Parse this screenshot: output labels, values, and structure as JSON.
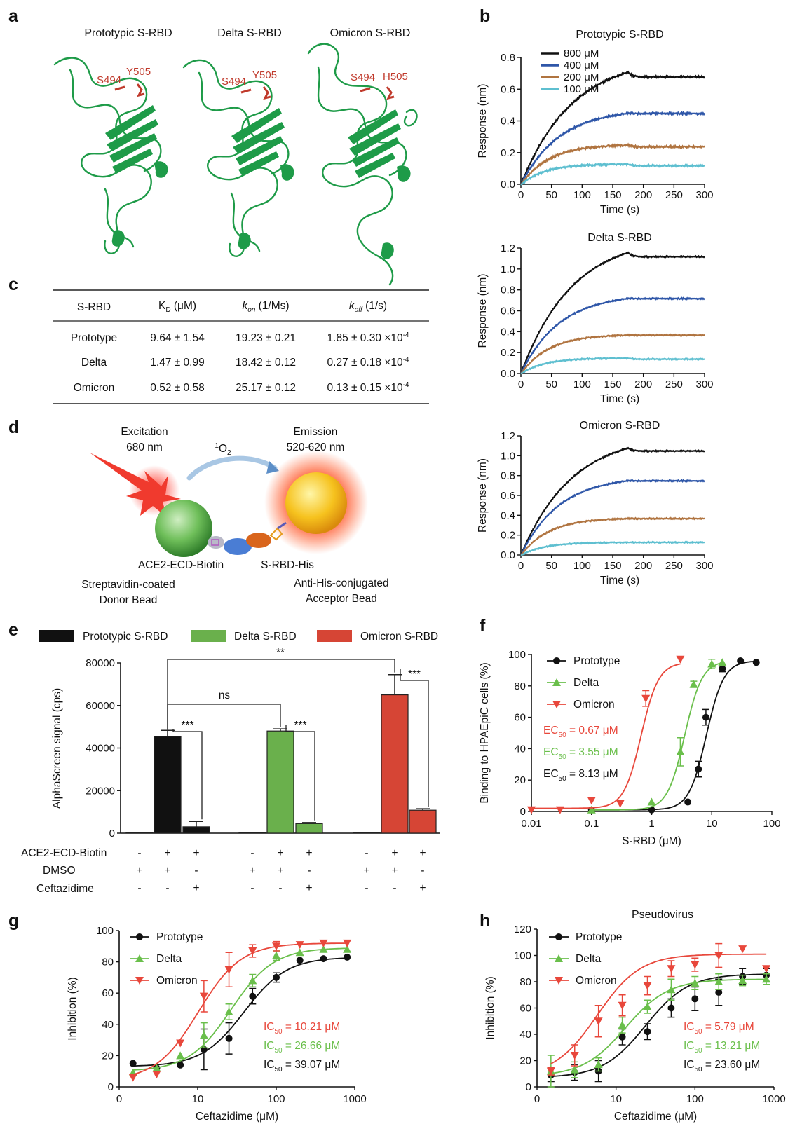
{
  "panel_labels": {
    "a": "a",
    "b": "b",
    "c": "c",
    "d": "d",
    "e": "e",
    "f": "f",
    "g": "g",
    "h": "h"
  },
  "panel_a": {
    "titles": [
      "Prototypic S-RBD",
      "Delta S-RBD",
      "Omicron S-RBD"
    ],
    "residues": [
      [
        "S494",
        "Y505"
      ],
      [
        "S494",
        "Y505"
      ],
      [
        "S494",
        "H505"
      ]
    ],
    "colors": {
      "ribbon": "#1e9b48",
      "residue": "#c0392b"
    }
  },
  "panel_b": {
    "legend": [
      "800 μM",
      "400 μM",
      "200 μM",
      "100 μM"
    ],
    "colors": [
      "#111111",
      "#2e56a8",
      "#b07440",
      "#5ebfd0"
    ],
    "xlabel": "Time (s)",
    "ylabel": "Response (nm)",
    "xticks": [
      "0",
      "50",
      "100",
      "150",
      "200",
      "250",
      "300"
    ],
    "subplots": [
      {
        "title": "Prototypic S-RBD",
        "ylim": [
          0,
          0.8
        ],
        "yticks": [
          "0.0",
          "0.2",
          "0.4",
          "0.6",
          "0.8"
        ]
      },
      {
        "title": "Delta S-RBD",
        "ylim": [
          0,
          1.2
        ],
        "yticks": [
          "0.0",
          "0.2",
          "0.4",
          "0.6",
          "0.8",
          "1.0",
          "1.2"
        ]
      },
      {
        "title": "Omicron S-RBD",
        "ylim": [
          0,
          1.2
        ],
        "yticks": [
          "0.0",
          "0.2",
          "0.4",
          "0.6",
          "0.8",
          "1.0",
          "1.2"
        ]
      }
    ]
  },
  "panel_c": {
    "headers": {
      "c0": "S-RBD",
      "c1": {
        "base": "K",
        "sub": "D",
        "unit": " (μM)"
      },
      "c2": {
        "base": "k",
        "sub": "on",
        "unit": " (1/Ms)"
      },
      "c3": {
        "base": "k",
        "sub": "off",
        "unit": " (1/s)"
      }
    },
    "rows": [
      {
        "name": "Prototype",
        "kd": "9.64 ± 1.54",
        "kon": "19.23 ± 0.21",
        "koff": "1.85 ± 0.30 ×10",
        "exp": "-4"
      },
      {
        "name": "Delta",
        "kd": "1.47 ± 0.99",
        "kon": "18.42 ± 0.12",
        "koff": "0.27 ± 0.18 ×10",
        "exp": "-4"
      },
      {
        "name": "Omicron",
        "kd": "0.52 ± 0.58",
        "kon": "25.17 ± 0.12",
        "koff": "0.13 ± 0.15 ×10",
        "exp": "-4"
      }
    ]
  },
  "panel_d": {
    "excitation": [
      "Excitation",
      "680 nm"
    ],
    "oxygen": {
      "base": "O",
      "sup": "1",
      "sub": "2"
    },
    "emission": [
      "Emission",
      "520-620 nm"
    ],
    "labels": {
      "ace2": "ACE2-ECD-Biotin",
      "srbd": "S-RBD-His"
    },
    "donor": [
      "Streptavidin-coated",
      "Donor Bead"
    ],
    "acceptor": [
      "Anti-His-conjugated",
      "Acceptor Bead"
    ]
  },
  "panel_e": {
    "legend": [
      "Prototypic S-RBD",
      "Delta S-RBD",
      "Omicron S-RBD"
    ],
    "colors": [
      "#111111",
      "#6ab04c",
      "#d64535"
    ],
    "ylabel": "AlphaScreen signal (cps)",
    "yticks": [
      "0",
      "20000",
      "40000",
      "60000",
      "80000"
    ],
    "row_labels": [
      "ACE2-ECD-Biotin",
      "DMSO",
      "Ceftazidime"
    ],
    "conditions": [
      [
        "-",
        "+",
        "+"
      ],
      [
        "+",
        "+",
        "-"
      ],
      [
        "-",
        "-",
        "+"
      ]
    ],
    "sig": {
      "top": "**",
      "ns": "ns",
      "pair": "***"
    }
  },
  "panel_f": {
    "xlabel": "S-RBD (μM)",
    "ylabel": "Binding to HPAEpiC cells (%)",
    "xticks": [
      "0.01",
      "0.1",
      "1",
      "10",
      "100"
    ],
    "yticks": [
      "0",
      "20",
      "40",
      "60",
      "80",
      "100"
    ],
    "legend": [
      "Prototype",
      "Delta",
      "Omicron"
    ],
    "colors": [
      "#111111",
      "#6abf4b",
      "#e8473b"
    ],
    "ec50_labels": [
      {
        "pre": "EC",
        "sub": "50",
        "post": " = 8.13 μM"
      },
      {
        "pre": "EC",
        "sub": "50",
        "post": " = 3.55 μM"
      },
      {
        "pre": "EC",
        "sub": "50",
        "post": " = 0.67 μM"
      }
    ]
  },
  "panel_g": {
    "xlabel": "Ceftazidime (μM)",
    "ylabel": "Inhibition (%)",
    "xticks": [
      "0",
      "10",
      "100",
      "1000"
    ],
    "yticks": [
      "0",
      "20",
      "40",
      "60",
      "80",
      "100"
    ],
    "legend": [
      "Prototype",
      "Delta",
      "Omicron"
    ],
    "colors": [
      "#111111",
      "#6abf4b",
      "#e8473b"
    ],
    "ic50_labels": [
      {
        "pre": "IC",
        "sub": "50",
        "post": " = 39.07 μM"
      },
      {
        "pre": "IC",
        "sub": "50",
        "post": " = 26.66 μM"
      },
      {
        "pre": "IC",
        "sub": "50",
        "post": " = 10.21 μM"
      }
    ]
  },
  "panel_h": {
    "title": "Pseudovirus",
    "xlabel": "Ceftazidime (μM)",
    "ylabel": "Inhibition (%)",
    "xticks": [
      "0",
      "10",
      "100",
      "1000"
    ],
    "yticks": [
      "0",
      "20",
      "40",
      "60",
      "80",
      "100",
      "120"
    ],
    "legend": [
      "Prototype",
      "Delta",
      "Omicron"
    ],
    "colors": [
      "#111111",
      "#6abf4b",
      "#e8473b"
    ],
    "ic50_labels": [
      {
        "pre": "IC",
        "sub": "50",
        "post": " = 23.60 μM"
      },
      {
        "pre": "IC",
        "sub": "50",
        "post": " = 13.21 μM"
      },
      {
        "pre": "IC",
        "sub": "50",
        "post": " = 5.79 μM"
      }
    ]
  },
  "chart_data": [
    {
      "type": "line",
      "id": "b1",
      "title": "Prototypic S-RBD",
      "xlabel": "Time (s)",
      "ylabel": "Response (nm)",
      "xlim": [
        0,
        300
      ],
      "ylim": [
        0,
        0.8
      ],
      "series": [
        {
          "name": "800 μM",
          "plateau": 0.71,
          "end": 0.68
        },
        {
          "name": "400 μM",
          "plateau": 0.45,
          "end": 0.45
        },
        {
          "name": "200 μM",
          "plateau": 0.25,
          "end": 0.24
        },
        {
          "name": "100 μM",
          "plateau": 0.13,
          "end": 0.12
        }
      ]
    },
    {
      "type": "line",
      "id": "b2",
      "title": "Delta S-RBD",
      "xlabel": "Time (s)",
      "ylabel": "Response (nm)",
      "xlim": [
        0,
        300
      ],
      "ylim": [
        0,
        1.2
      ],
      "series": [
        {
          "name": "800 μM",
          "plateau": 1.16,
          "end": 1.12
        },
        {
          "name": "400 μM",
          "plateau": 0.72,
          "end": 0.72
        },
        {
          "name": "200 μM",
          "plateau": 0.37,
          "end": 0.37
        },
        {
          "name": "100 μM",
          "plateau": 0.15,
          "end": 0.14
        }
      ]
    },
    {
      "type": "line",
      "id": "b3",
      "title": "Omicron S-RBD",
      "xlabel": "Time (s)",
      "ylabel": "Response (nm)",
      "xlim": [
        0,
        300
      ],
      "ylim": [
        0,
        1.2
      ],
      "series": [
        {
          "name": "800 μM",
          "plateau": 1.08,
          "end": 1.05
        },
        {
          "name": "400 μM",
          "plateau": 0.75,
          "end": 0.75
        },
        {
          "name": "200 μM",
          "plateau": 0.37,
          "end": 0.37
        },
        {
          "name": "100 μM",
          "plateau": 0.13,
          "end": 0.13
        }
      ]
    },
    {
      "type": "bar",
      "id": "e",
      "ylabel": "AlphaScreen signal (cps)",
      "ylim": [
        0,
        80000
      ],
      "groups": [
        {
          "name": "Prototypic S-RBD",
          "values": [
            200,
            45500,
            3000
          ],
          "errors": [
            0,
            2800,
            2500
          ]
        },
        {
          "name": "Delta S-RBD",
          "values": [
            200,
            48000,
            4500
          ],
          "errors": [
            0,
            1000,
            500
          ]
        },
        {
          "name": "Omicron S-RBD",
          "values": [
            300,
            65000,
            10800
          ],
          "errors": [
            0,
            9500,
            700
          ]
        }
      ]
    },
    {
      "type": "scatter",
      "id": "f",
      "xlabel": "S-RBD (μM)",
      "ylabel": "Binding to HPAEpiC cells (%)",
      "xscale": "log",
      "xlim": [
        0.01,
        100
      ],
      "ylim": [
        0,
        100
      ],
      "series": [
        {
          "name": "Prototype",
          "ec50": 8.13,
          "top": 96,
          "bottom": 1,
          "x": [
            0.1,
            1,
            4,
            6,
            8,
            15,
            30,
            55
          ],
          "y": [
            1,
            1,
            6,
            27,
            60,
            91,
            96,
            95
          ],
          "err": [
            0,
            0,
            0,
            5,
            5,
            2,
            0,
            0
          ]
        },
        {
          "name": "Delta",
          "ec50": 3.55,
          "top": 96,
          "bottom": 1,
          "x": [
            0.1,
            1,
            3,
            5,
            10,
            15
          ],
          "y": [
            1,
            6,
            38,
            81,
            94,
            95
          ],
          "err": [
            0,
            0,
            9,
            2,
            3,
            0
          ]
        },
        {
          "name": "Omicron",
          "ec50": 0.67,
          "top": 95,
          "bottom": 2,
          "x": [
            0.01,
            0.03,
            0.1,
            0.3,
            0.8,
            3
          ],
          "y": [
            1,
            1,
            7,
            5,
            72,
            97
          ],
          "err": [
            0,
            0,
            0,
            0,
            5,
            0
          ]
        }
      ]
    },
    {
      "type": "scatter",
      "id": "g",
      "xlabel": "Ceftazidime (μM)",
      "ylabel": "Inhibition (%)",
      "xscale": "log",
      "xlim": [
        1,
        1000
      ],
      "ylim": [
        0,
        100
      ],
      "series": [
        {
          "name": "Prototype",
          "ic50": 39.07,
          "top": 83,
          "bottom": 13,
          "x": [
            1.5,
            3,
            6,
            12,
            25,
            50,
            100,
            200,
            400,
            800
          ],
          "y": [
            15,
            12,
            14,
            24,
            31,
            58,
            70,
            81,
            82,
            83
          ],
          "err": [
            0,
            0,
            0,
            13,
            10,
            5,
            3,
            0,
            0,
            0
          ]
        },
        {
          "name": "Delta",
          "ic50": 26.66,
          "top": 89,
          "bottom": 10,
          "x": [
            1.5,
            3,
            6,
            12,
            25,
            50,
            100,
            200,
            400,
            800
          ],
          "y": [
            9,
            12,
            20,
            33,
            48,
            68,
            84,
            86,
            88,
            88
          ],
          "err": [
            0,
            0,
            0,
            8,
            5,
            4,
            3,
            0,
            0,
            0
          ]
        },
        {
          "name": "Omicron",
          "ic50": 10.21,
          "top": 92,
          "bottom": 4,
          "x": [
            1.5,
            3,
            6,
            12,
            25,
            50,
            100,
            200,
            400,
            800
          ],
          "y": [
            6,
            8,
            28,
            58,
            75,
            87,
            90,
            91,
            92,
            92
          ],
          "err": [
            0,
            0,
            0,
            10,
            11,
            4,
            3,
            0,
            0,
            0
          ]
        }
      ]
    },
    {
      "type": "scatter",
      "id": "h",
      "title": "Pseudovirus",
      "xlabel": "Ceftazidime (μM)",
      "ylabel": "Inhibition (%)",
      "xscale": "log",
      "xlim": [
        1,
        1000
      ],
      "ylim": [
        0,
        120
      ],
      "series": [
        {
          "name": "Prototype",
          "ic50": 23.6,
          "top": 86,
          "bottom": 7,
          "x": [
            1.5,
            3,
            6,
            12,
            25,
            50,
            100,
            200,
            400,
            800
          ],
          "y": [
            9,
            11,
            12,
            38,
            42,
            60,
            67,
            72,
            84,
            85
          ],
          "err": [
            5,
            6,
            8,
            6,
            6,
            7,
            9,
            10,
            6,
            5
          ]
        },
        {
          "name": "Delta",
          "ic50": 13.21,
          "top": 82,
          "bottom": 8,
          "x": [
            1.5,
            3,
            6,
            12,
            25,
            50,
            100,
            200,
            400,
            800
          ],
          "y": [
            12,
            13,
            17,
            47,
            61,
            74,
            79,
            80,
            81,
            82
          ],
          "err": [
            12,
            6,
            5,
            6,
            5,
            8,
            5,
            6,
            4,
            4
          ]
        },
        {
          "name": "Omicron",
          "ic50": 5.79,
          "top": 101,
          "bottom": 8,
          "x": [
            1.5,
            3,
            6,
            12,
            25,
            50,
            100,
            200,
            400,
            800
          ],
          "y": [
            12,
            24,
            50,
            62,
            77,
            90,
            93,
            100,
            105,
            90
          ],
          "err": [
            3,
            8,
            12,
            8,
            7,
            6,
            5,
            9,
            0,
            0
          ]
        }
      ]
    }
  ]
}
